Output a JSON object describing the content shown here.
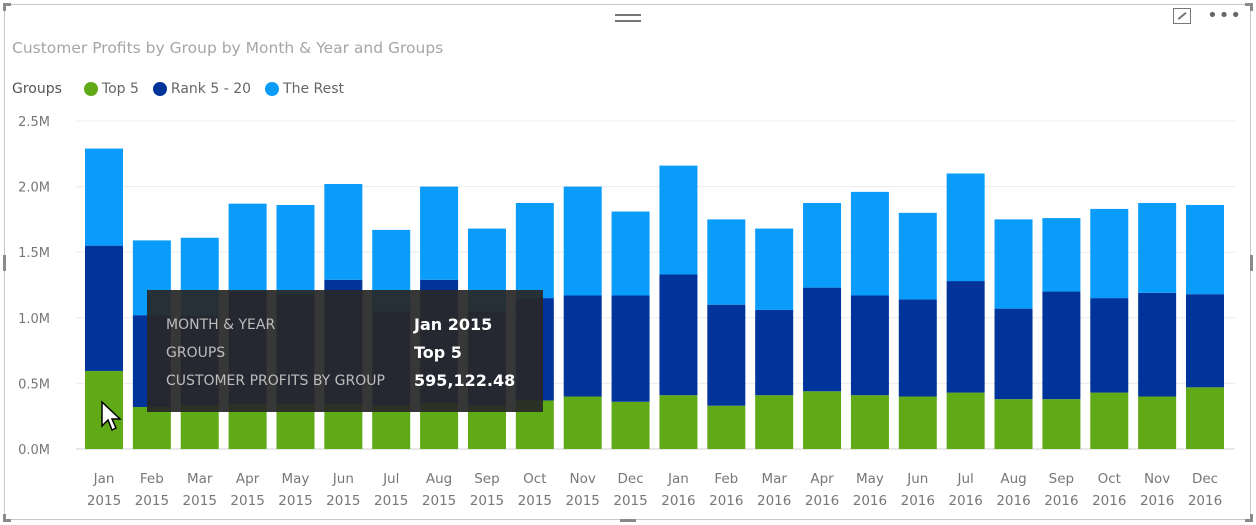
{
  "title": "Customer Profits by Group by Month & Year and Groups",
  "legend": {
    "label": "Groups",
    "items": [
      {
        "name": "Top 5",
        "color": "#60a917"
      },
      {
        "name": "Rank 5 - 20",
        "color": "#01349a"
      },
      {
        "name": "The Rest",
        "color": "#0a9cfb"
      }
    ]
  },
  "tooltip": {
    "rows": [
      {
        "key": "MONTH & YEAR",
        "value": "Jan 2015"
      },
      {
        "key": "GROUPS",
        "value": "Top 5"
      },
      {
        "key": "CUSTOMER PROFITS BY GROUP",
        "value": "595,122.48"
      }
    ]
  },
  "chart_data": {
    "type": "bar",
    "stacked": true,
    "title": "Customer Profits by Group by Month & Year and Groups",
    "xlabel": "",
    "ylabel": "",
    "ylim": [
      0,
      2.5
    ],
    "yticks": [
      "0.0M",
      "0.5M",
      "1.0M",
      "1.5M",
      "2.0M",
      "2.5M"
    ],
    "ytick_values": [
      0,
      0.5,
      1.0,
      1.5,
      2.0,
      2.5
    ],
    "unit": "M",
    "grid": true,
    "legend_position": "top-left",
    "categories": [
      [
        "Jan",
        "2015"
      ],
      [
        "Feb",
        "2015"
      ],
      [
        "Mar",
        "2015"
      ],
      [
        "Apr",
        "2015"
      ],
      [
        "May",
        "2015"
      ],
      [
        "Jun",
        "2015"
      ],
      [
        "Jul",
        "2015"
      ],
      [
        "Aug",
        "2015"
      ],
      [
        "Sep",
        "2015"
      ],
      [
        "Oct",
        "2015"
      ],
      [
        "Nov",
        "2015"
      ],
      [
        "Dec",
        "2015"
      ],
      [
        "Jan",
        "2016"
      ],
      [
        "Feb",
        "2016"
      ],
      [
        "Mar",
        "2016"
      ],
      [
        "Apr",
        "2016"
      ],
      [
        "May",
        "2016"
      ],
      [
        "Jun",
        "2016"
      ],
      [
        "Jul",
        "2016"
      ],
      [
        "Aug",
        "2016"
      ],
      [
        "Sep",
        "2016"
      ],
      [
        "Oct",
        "2016"
      ],
      [
        "Nov",
        "2016"
      ],
      [
        "Dec",
        "2016"
      ]
    ],
    "series": [
      {
        "name": "Top 5",
        "values": [
          0.595,
          0.32,
          0.33,
          0.34,
          0.34,
          0.34,
          0.33,
          0.35,
          0.33,
          0.37,
          0.4,
          0.36,
          0.41,
          0.33,
          0.41,
          0.44,
          0.41,
          0.4,
          0.43,
          0.38,
          0.38,
          0.43,
          0.4,
          0.47
        ]
      },
      {
        "name": "Rank 5 - 20",
        "values": [
          0.955,
          0.7,
          0.69,
          0.86,
          0.84,
          0.95,
          0.72,
          0.94,
          0.72,
          0.78,
          0.77,
          0.81,
          0.92,
          0.77,
          0.65,
          0.79,
          0.76,
          0.74,
          0.85,
          0.69,
          0.82,
          0.72,
          0.79,
          0.71
        ]
      },
      {
        "name": "The Rest",
        "values": [
          0.74,
          0.57,
          0.59,
          0.67,
          0.68,
          0.73,
          0.62,
          0.71,
          0.63,
          0.725,
          0.83,
          0.64,
          0.83,
          0.65,
          0.62,
          0.645,
          0.79,
          0.66,
          0.82,
          0.68,
          0.56,
          0.68,
          0.685,
          0.68
        ]
      }
    ]
  }
}
